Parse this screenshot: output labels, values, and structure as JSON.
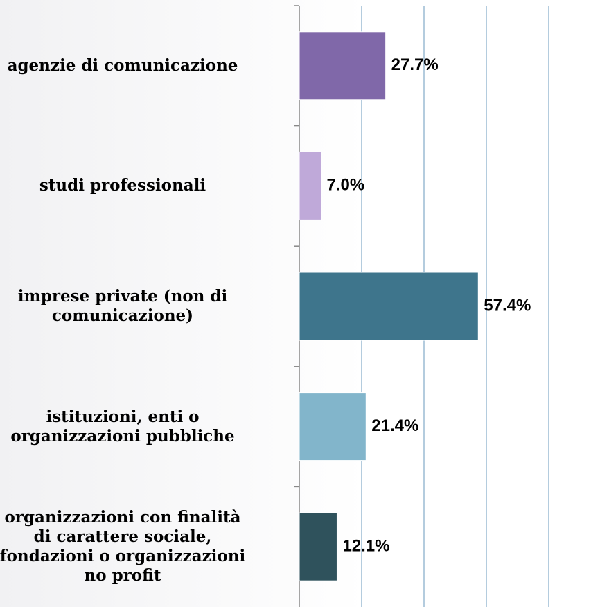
{
  "chart_data": {
    "type": "barh",
    "categories": [
      "agenzie di comunicazione",
      "studi professionali",
      "imprese private (non di\ncomunicazione)",
      "istituzioni, enti o\norganizzazioni pubbliche",
      "organizzazioni con finalità\ndi carattere sociale,\nfondazioni o organizzazioni\nno profit"
    ],
    "values": [
      27.7,
      7.0,
      57.4,
      21.4,
      12.1
    ],
    "value_labels": [
      "27.7%",
      "7.0%",
      "57.4%",
      "21.4%",
      "12.1%"
    ],
    "colors": [
      "#8068a9",
      "#bfa9d9",
      "#3e758c",
      "#82b5cb",
      "#2f525c"
    ],
    "xlim": [
      0,
      100
    ],
    "xticks": [
      0,
      20,
      40,
      60,
      80,
      100
    ],
    "grid": true
  }
}
